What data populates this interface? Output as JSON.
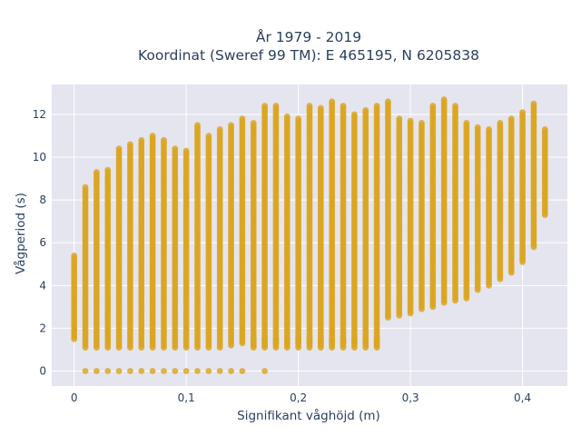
{
  "chart_data": {
    "type": "scatter",
    "title_line1": "År 1979 - 2019",
    "title_line2": "Koordinat (Sweref 99 TM): E 465195, N 6205838",
    "xlabel": "Signifikant våghöjd (m)",
    "ylabel": "Vågperiod (s)",
    "xlim": [
      -0.02,
      0.44
    ],
    "ylim": [
      -0.7,
      13.4
    ],
    "x_ticks": [
      0,
      0.1,
      0.2,
      0.3,
      0.4
    ],
    "x_tick_labels": [
      "0",
      "0,1",
      "0,2",
      "0,3",
      "0,4"
    ],
    "y_ticks": [
      0,
      2,
      4,
      6,
      8,
      10,
      12
    ],
    "y_tick_labels": [
      "0",
      "2",
      "4",
      "6",
      "8",
      "10",
      "12"
    ],
    "grid": true,
    "marker_color": "#DAA520",
    "background_color": "#E5E5EF",
    "columns": [
      {
        "x": 0.0,
        "y_min": 1.5,
        "y_max": 5.4,
        "zero": false
      },
      {
        "x": 0.01,
        "y_min": 1.1,
        "y_max": 8.6,
        "zero": true
      },
      {
        "x": 0.02,
        "y_min": 1.1,
        "y_max": 9.3,
        "zero": true
      },
      {
        "x": 0.03,
        "y_min": 1.1,
        "y_max": 9.4,
        "zero": true
      },
      {
        "x": 0.04,
        "y_min": 1.1,
        "y_max": 10.4,
        "zero": true
      },
      {
        "x": 0.05,
        "y_min": 1.1,
        "y_max": 10.6,
        "zero": true
      },
      {
        "x": 0.06,
        "y_min": 1.1,
        "y_max": 10.8,
        "zero": true
      },
      {
        "x": 0.07,
        "y_min": 1.1,
        "y_max": 11.0,
        "zero": true
      },
      {
        "x": 0.08,
        "y_min": 1.1,
        "y_max": 10.8,
        "zero": true
      },
      {
        "x": 0.09,
        "y_min": 1.1,
        "y_max": 10.4,
        "zero": true
      },
      {
        "x": 0.1,
        "y_min": 1.1,
        "y_max": 10.3,
        "zero": true
      },
      {
        "x": 0.11,
        "y_min": 1.1,
        "y_max": 11.5,
        "zero": true
      },
      {
        "x": 0.12,
        "y_min": 1.1,
        "y_max": 11.0,
        "zero": true
      },
      {
        "x": 0.13,
        "y_min": 1.1,
        "y_max": 11.3,
        "zero": true
      },
      {
        "x": 0.14,
        "y_min": 1.2,
        "y_max": 11.5,
        "zero": true
      },
      {
        "x": 0.15,
        "y_min": 1.3,
        "y_max": 11.8,
        "zero": true
      },
      {
        "x": 0.16,
        "y_min": 1.2,
        "y_max": 11.6,
        "zero": false
      },
      {
        "x": 0.17,
        "y_min": 1.2,
        "y_max": 12.4,
        "zero": false
      },
      {
        "x": 0.18,
        "y_min": 1.3,
        "y_max": 12.4,
        "zero": false
      },
      {
        "x": 0.19,
        "y_min": 1.3,
        "y_max": 11.9,
        "zero": false
      },
      {
        "x": 0.2,
        "y_min": 1.3,
        "y_max": 11.8,
        "zero": false
      },
      {
        "x": 0.21,
        "y_min": 1.3,
        "y_max": 12.4,
        "zero": false
      },
      {
        "x": 0.22,
        "y_min": 1.3,
        "y_max": 12.3,
        "zero": false
      },
      {
        "x": 0.23,
        "y_min": 1.3,
        "y_max": 12.6,
        "zero": false
      },
      {
        "x": 0.24,
        "y_min": 1.3,
        "y_max": 12.4,
        "zero": false
      },
      {
        "x": 0.25,
        "y_min": 1.3,
        "y_max": 12.0,
        "zero": false
      },
      {
        "x": 0.26,
        "y_min": 1.3,
        "y_max": 12.2,
        "zero": false
      },
      {
        "x": 0.27,
        "y_min": 1.2,
        "y_max": 12.4,
        "zero": false
      },
      {
        "x": 0.28,
        "y_min": 2.5,
        "y_max": 12.6,
        "zero": false
      },
      {
        "x": 0.29,
        "y_min": 2.6,
        "y_max": 11.8,
        "zero": false
      },
      {
        "x": 0.3,
        "y_min": 2.7,
        "y_max": 11.7,
        "zero": false
      },
      {
        "x": 0.31,
        "y_min": 2.9,
        "y_max": 11.6,
        "zero": false
      },
      {
        "x": 0.32,
        "y_min": 3.0,
        "y_max": 12.4,
        "zero": false
      },
      {
        "x": 0.33,
        "y_min": 3.2,
        "y_max": 12.7,
        "zero": false
      },
      {
        "x": 0.34,
        "y_min": 3.3,
        "y_max": 12.4,
        "zero": false
      },
      {
        "x": 0.35,
        "y_min": 3.4,
        "y_max": 11.6,
        "zero": false
      },
      {
        "x": 0.36,
        "y_min": 3.8,
        "y_max": 11.4,
        "zero": false
      },
      {
        "x": 0.37,
        "y_min": 4.0,
        "y_max": 11.3,
        "zero": false
      },
      {
        "x": 0.38,
        "y_min": 4.3,
        "y_max": 11.6,
        "zero": false
      },
      {
        "x": 0.39,
        "y_min": 4.6,
        "y_max": 11.8,
        "zero": false
      },
      {
        "x": 0.4,
        "y_min": 5.1,
        "y_max": 12.1,
        "zero": false
      },
      {
        "x": 0.41,
        "y_min": 5.8,
        "y_max": 12.5,
        "zero": false
      },
      {
        "x": 0.42,
        "y_min": 7.3,
        "y_max": 11.3,
        "zero": false
      }
    ],
    "low_band_y": [
      1.1,
      1.2,
      1.3,
      1.4,
      1.5
    ],
    "low_band_x_max": 0.27,
    "zero_x_extra": [
      0.17
    ]
  }
}
